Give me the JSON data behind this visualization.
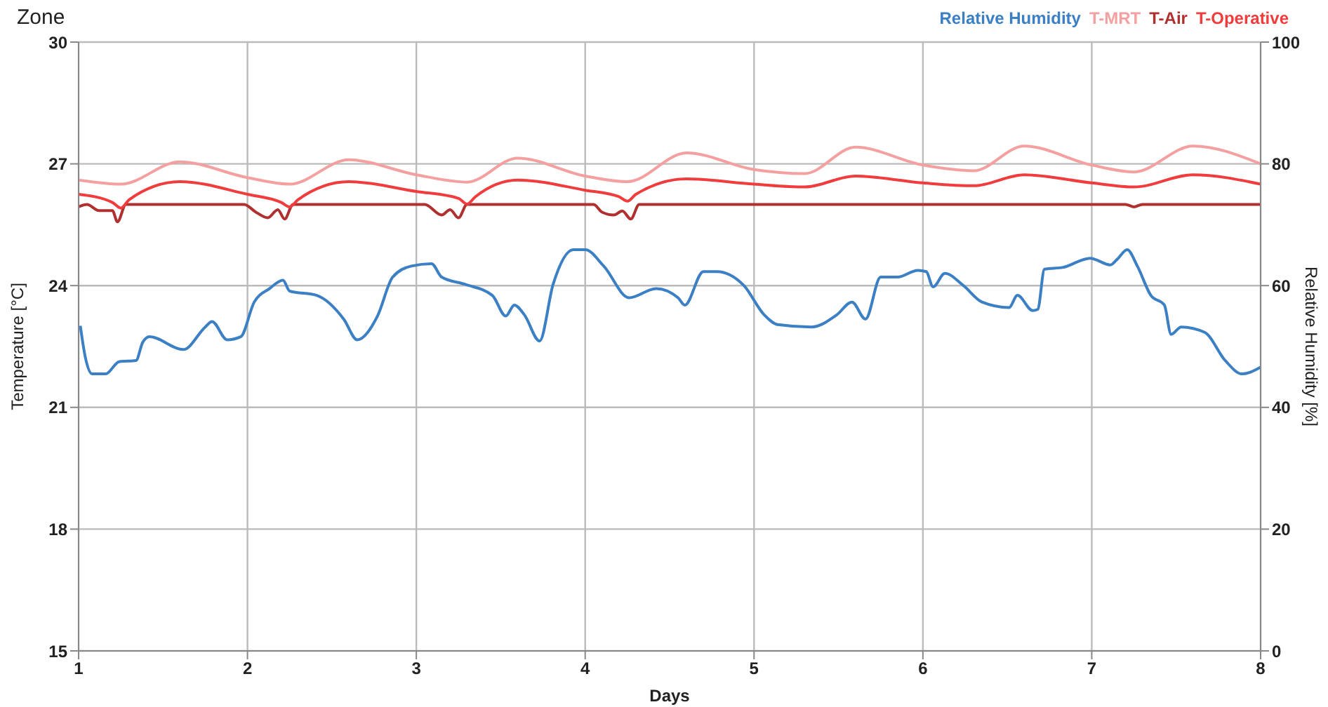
{
  "chart_data": {
    "type": "line",
    "title": "Zone",
    "xlabel": "Days",
    "ylabel": "Temperature [°C]",
    "y2label": "Relative Humidity [%]",
    "xlim": [
      1,
      8
    ],
    "xticks": [
      1,
      2,
      3,
      4,
      5,
      6,
      7,
      8
    ],
    "ylim": [
      15,
      30
    ],
    "yticks": [
      15,
      18,
      21,
      24,
      27,
      30
    ],
    "y2lim": [
      0,
      100
    ],
    "y2ticks": [
      0,
      20,
      40,
      60,
      80,
      100
    ],
    "grid": true,
    "legend": "top right",
    "series": [
      {
        "name": "Relative Humidity",
        "color": "#3b7fc4",
        "axis": "y2",
        "x": [
          1.01,
          1.04,
          1.08,
          1.16,
          1.24,
          1.34,
          1.38,
          1.42,
          1.62,
          1.75,
          1.79,
          1.88,
          1.96,
          2.04,
          2.13,
          2.21,
          2.25,
          2.41,
          2.57,
          2.65,
          2.77,
          2.86,
          2.97,
          3.09,
          3.15,
          3.29,
          3.45,
          3.53,
          3.58,
          3.64,
          3.73,
          3.81,
          3.93,
          4.0,
          4.11,
          4.26,
          4.42,
          4.55,
          4.59,
          4.7,
          4.78,
          4.94,
          5.06,
          5.14,
          5.34,
          5.49,
          5.58,
          5.66,
          5.75,
          5.85,
          5.97,
          6.02,
          6.06,
          6.13,
          6.24,
          6.35,
          6.51,
          6.56,
          6.65,
          6.68,
          6.72,
          6.83,
          6.99,
          7.11,
          7.15,
          7.21,
          7.27,
          7.35,
          7.43,
          7.47,
          7.53,
          7.67,
          7.79,
          7.89,
          8.0
        ],
        "values": [
          53.4,
          48.2,
          45.5,
          45.5,
          47.5,
          47.7,
          50.7,
          51.6,
          49.5,
          53.2,
          54.1,
          51.1,
          51.6,
          57.3,
          59.5,
          60.9,
          59.1,
          58.4,
          54.5,
          51.1,
          55,
          61.4,
          63.2,
          63.6,
          61.4,
          60.2,
          58.4,
          55,
          56.8,
          55.2,
          50.9,
          60.2,
          65.9,
          65.9,
          63.2,
          58,
          59.5,
          58,
          56.8,
          62.3,
          62.3,
          60,
          55.2,
          53.6,
          53.2,
          55.2,
          57.3,
          54.5,
          61.4,
          61.4,
          62.5,
          62.3,
          59.8,
          62,
          60,
          57.3,
          56.4,
          58.4,
          55.9,
          56.1,
          62.7,
          63,
          64.5,
          63.4,
          64.3,
          65.9,
          63.2,
          58.4,
          56.8,
          52,
          53.2,
          52.3,
          47.7,
          45.5,
          46.6
        ]
      },
      {
        "name": "T-MRT",
        "color": "#f4a0a0",
        "x": [
          1,
          1.25,
          1.6,
          2,
          2.25,
          2.6,
          3,
          3.3,
          3.6,
          4,
          4.25,
          4.6,
          5,
          5.3,
          5.6,
          6,
          6.3,
          6.6,
          7,
          7.25,
          7.6,
          8
        ],
        "values": [
          26.6,
          26.5,
          27.05,
          26.66,
          26.5,
          27.1,
          26.73,
          26.55,
          27.14,
          26.7,
          26.56,
          27.27,
          26.86,
          26.76,
          27.41,
          26.97,
          26.83,
          27.44,
          26.97,
          26.8,
          27.44,
          27.0
        ]
      },
      {
        "name": "T-Air",
        "color": "#b03030",
        "x": [
          1,
          1.05,
          1.12,
          1.2,
          1.23,
          1.28,
          1.98,
          2.05,
          2.12,
          2.18,
          2.22,
          2.27,
          3.05,
          3.15,
          3.2,
          3.25,
          3.3,
          4.05,
          4.1,
          4.17,
          4.22,
          4.27,
          4.32,
          7.2,
          7.25,
          7.3,
          8
        ],
        "values": [
          25.94,
          26.0,
          25.85,
          25.85,
          25.57,
          26.0,
          26.0,
          25.81,
          25.67,
          25.87,
          25.64,
          26.0,
          26.0,
          25.74,
          25.87,
          25.67,
          26.0,
          26.0,
          25.81,
          25.74,
          25.84,
          25.64,
          26.0,
          26.0,
          25.94,
          26.0,
          26.0
        ]
      },
      {
        "name": "T-Operative",
        "color": "#f03c3c",
        "x": [
          1,
          1.2,
          1.25,
          1.3,
          1.6,
          2,
          2.2,
          2.25,
          2.3,
          2.6,
          3,
          3.25,
          3.3,
          3.35,
          3.6,
          4,
          4.2,
          4.25,
          4.3,
          4.6,
          5,
          5.3,
          5.6,
          6,
          6.3,
          6.6,
          7,
          7.25,
          7.6,
          8
        ],
        "values": [
          26.25,
          26.05,
          25.91,
          26.12,
          26.56,
          26.25,
          26.05,
          25.94,
          26.12,
          26.56,
          26.32,
          26.15,
          26.01,
          26.19,
          26.6,
          26.35,
          26.19,
          26.08,
          26.25,
          26.63,
          26.5,
          26.43,
          26.7,
          26.53,
          26.46,
          26.73,
          26.53,
          26.43,
          26.73,
          26.5
        ]
      }
    ]
  }
}
